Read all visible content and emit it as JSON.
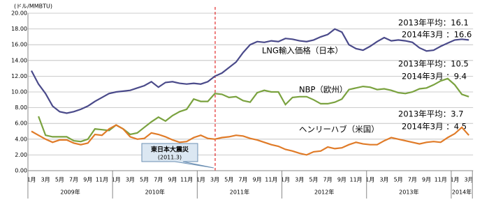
{
  "chart_data": {
    "type": "line",
    "unit_label": "(ドル/MMBTU)",
    "categories": [
      "1月",
      null,
      "3月",
      null,
      "5月",
      null,
      "7月",
      null,
      "9月",
      null,
      "11月",
      null,
      "1月",
      null,
      "3月",
      null,
      "5月",
      null,
      "7月",
      null,
      "9月",
      null,
      "11月",
      null,
      "1月",
      null,
      "3月",
      null,
      "5月",
      null,
      "7月",
      null,
      "9月",
      null,
      "11月",
      null,
      "1月",
      null,
      "3月",
      null,
      "5月",
      null,
      "7月",
      null,
      "9月",
      null,
      "11月",
      null,
      "1月",
      null,
      "3月",
      null,
      "5月",
      null,
      "7月",
      null,
      "9月",
      null,
      "11月",
      null,
      "1月",
      null,
      "3月"
    ],
    "year_labels": [
      "2009年",
      "2010年",
      "2011年",
      "2012年",
      "2013年",
      "2014年"
    ],
    "series": [
      {
        "name": "LNG輸入価格（日本）",
        "color": "#4a4a8a",
        "values": [
          12.7,
          11.0,
          9.8,
          8.2,
          7.5,
          7.3,
          7.5,
          7.8,
          8.2,
          8.8,
          9.3,
          9.8,
          10.0,
          10.1,
          10.2,
          10.5,
          10.8,
          11.3,
          10.6,
          11.2,
          11.3,
          11.1,
          11.0,
          11.1,
          11.0,
          11.3,
          12.0,
          12.4,
          13.1,
          13.8,
          15.0,
          16.0,
          16.4,
          16.3,
          16.5,
          16.4,
          16.8,
          16.7,
          16.5,
          16.4,
          16.6,
          17.0,
          17.3,
          18.0,
          17.6,
          16.0,
          15.5,
          15.3,
          15.8,
          16.4,
          16.9,
          16.5,
          16.6,
          16.5,
          16.3,
          15.6,
          15.2,
          15.3,
          15.8,
          16.2,
          16.6,
          16.7,
          16.6
        ]
      },
      {
        "name": "NBP（欧州）",
        "color": "#7aa23f",
        "values": [
          null,
          6.9,
          4.5,
          4.3,
          4.3,
          4.3,
          3.8,
          3.7,
          4.0,
          5.3,
          5.2,
          5.1,
          5.8,
          5.3,
          4.6,
          4.8,
          5.5,
          6.2,
          6.8,
          6.3,
          7.0,
          7.5,
          7.8,
          9.1,
          8.8,
          8.8,
          9.8,
          9.7,
          9.3,
          9.4,
          8.9,
          8.7,
          9.9,
          10.2,
          10.0,
          10.0,
          8.4,
          9.3,
          9.4,
          9.4,
          9.0,
          8.5,
          8.5,
          8.7,
          9.1,
          10.3,
          10.5,
          10.7,
          10.6,
          10.3,
          10.4,
          10.2,
          9.9,
          9.8,
          10.0,
          10.4,
          10.5,
          10.9,
          11.4,
          11.7,
          10.9,
          9.7,
          9.4
        ]
      },
      {
        "name": "ヘンリーハブ（米国）",
        "color": "#e07b28",
        "values": [
          5.0,
          4.5,
          4.0,
          3.6,
          3.9,
          3.9,
          3.5,
          3.3,
          3.5,
          4.6,
          4.5,
          5.3,
          5.8,
          5.3,
          4.3,
          4.0,
          4.1,
          4.8,
          4.6,
          4.3,
          3.9,
          3.6,
          3.7,
          4.2,
          4.5,
          4.1,
          4.0,
          4.2,
          4.3,
          4.5,
          4.4,
          4.1,
          3.9,
          3.6,
          3.3,
          3.1,
          2.7,
          2.5,
          2.2,
          2.0,
          2.4,
          2.5,
          3.0,
          2.8,
          2.9,
          3.3,
          3.6,
          3.4,
          3.3,
          3.3,
          3.8,
          4.2,
          4.0,
          3.8,
          3.6,
          3.4,
          3.6,
          3.7,
          3.6,
          4.2,
          4.7,
          5.5,
          4.5
        ]
      }
    ],
    "ylim": [
      0,
      20
    ],
    "yticks": [
      {
        "value": 0,
        "label": "0.00"
      },
      {
        "value": 2,
        "label": "2.00"
      },
      {
        "value": 4,
        "label": "4.00"
      },
      {
        "value": 6,
        "label": "6.00"
      },
      {
        "value": 8,
        "label": "8.00"
      },
      {
        "value": 10,
        "label": "10.00"
      },
      {
        "value": 12,
        "label": "12.00"
      },
      {
        "value": 14,
        "label": "14.00"
      },
      {
        "value": 16,
        "label": "16.00"
      },
      {
        "value": 18,
        "label": "18.00"
      },
      {
        "value": 20,
        "label": "20.00"
      }
    ],
    "event": {
      "title": "東日本大震災",
      "date": "(2011.3)"
    },
    "notes": [
      "2013年平均：16.1",
      "2014年3月 ：16.6",
      "2013年平均：10.5",
      "2014年3月 ：9.4",
      "2013年平均：3.7",
      "2014年3月 ：4.5"
    ]
  }
}
